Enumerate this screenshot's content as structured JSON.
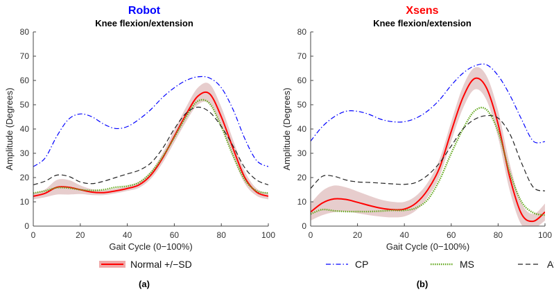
{
  "chart_data": [
    {
      "type": "line",
      "panel_label": "(a)",
      "title": "Robot",
      "title_color": "#0000ff",
      "subtitle": "Knee flexion/extension",
      "xlabel": "Gait Cycle (0−100%)",
      "ylabel": "Amplitude (Degrees)",
      "xlim": [
        0,
        100
      ],
      "ylim": [
        0,
        80
      ],
      "xticks": [
        "0",
        "20",
        "40",
        "60",
        "80",
        "100"
      ],
      "yticks": [
        "0",
        "10",
        "20",
        "30",
        "40",
        "50",
        "60",
        "70",
        "80"
      ],
      "x": [
        0,
        5,
        10,
        15,
        20,
        25,
        30,
        35,
        40,
        45,
        50,
        55,
        60,
        65,
        70,
        75,
        80,
        85,
        90,
        95,
        100
      ],
      "series": [
        {
          "name": "Normal +/−SD",
          "color": "#ff0000",
          "style": "solid",
          "values": [
            12.3,
            13.5,
            16,
            16,
            15,
            14,
            13.8,
            14.5,
            15.5,
            17,
            21,
            28,
            37,
            46,
            53.5,
            54.5,
            45,
            32,
            20,
            14,
            12.3
          ],
          "sd": [
            1.3,
            1.6,
            3,
            3,
            1.8,
            1.2,
            1,
            1,
            1,
            1.2,
            1.5,
            2,
            2.5,
            3,
            3.5,
            4,
            4,
            3.5,
            2.5,
            1.5,
            1.3
          ]
        },
        {
          "name": "CP",
          "color": "#0000ff",
          "style": "dashdot",
          "values": [
            24.5,
            28,
            37,
            44,
            46.2,
            45,
            42,
            40.2,
            41,
            44,
            48,
            53,
            57,
            60,
            61.5,
            61,
            57,
            48,
            36,
            27,
            24.5
          ]
        },
        {
          "name": "MS",
          "color": "#66aa22",
          "style": "dotted",
          "values": [
            13.6,
            14.5,
            15.8,
            15.7,
            15,
            14.7,
            15,
            16,
            16.5,
            18,
            22,
            28.5,
            36.5,
            45,
            51.5,
            50.5,
            41,
            29,
            19,
            14.5,
            13.6
          ]
        },
        {
          "name": "Ataxia",
          "color": "#222222",
          "style": "dashed",
          "values": [
            17,
            18.5,
            21,
            20.5,
            18.2,
            17.5,
            18.5,
            20,
            21.5,
            23,
            26,
            32,
            40,
            46.5,
            49,
            47,
            41,
            33,
            24,
            19,
            17
          ]
        }
      ]
    },
    {
      "type": "line",
      "panel_label": "(b)",
      "title": "Xsens",
      "title_color": "#ff0000",
      "subtitle": "Knee flexion/extension",
      "xlabel": "Gait Cycle (0−100%)",
      "ylabel": "Amplitude (Degrees)",
      "xlim": [
        0,
        100
      ],
      "ylim": [
        0,
        80
      ],
      "xticks": [
        "0",
        "20",
        "40",
        "60",
        "80",
        "100"
      ],
      "yticks": [
        "0",
        "10",
        "20",
        "30",
        "40",
        "50",
        "60",
        "70",
        "80"
      ],
      "x": [
        0,
        5,
        10,
        15,
        20,
        25,
        30,
        35,
        40,
        45,
        50,
        55,
        60,
        65,
        70,
        75,
        80,
        85,
        90,
        95,
        100
      ],
      "series": [
        {
          "name": "Normal +/−SD",
          "color": "#ff0000",
          "style": "solid",
          "values": [
            5.8,
            9.5,
            11.2,
            11,
            9.8,
            8.5,
            7.4,
            6.8,
            7,
            9.5,
            15,
            24,
            39,
            53,
            60.8,
            57,
            42,
            20,
            5,
            2,
            5.8
          ],
          "sd": [
            3.5,
            5,
            5.5,
            5,
            4.5,
            4,
            3.5,
            3.2,
            3,
            3,
            3,
            3.5,
            4,
            4.5,
            4.5,
            5,
            5.5,
            5.5,
            4.5,
            3,
            3.5
          ]
        },
        {
          "name": "CP",
          "color": "#0000ff",
          "style": "dashdot",
          "values": [
            35,
            41,
            45,
            47.3,
            47.3,
            46,
            44,
            43,
            43,
            44.5,
            47.5,
            52,
            58,
            63,
            66,
            66.5,
            62,
            54,
            44,
            35,
            34.8
          ]
        },
        {
          "name": "MS",
          "color": "#66aa22",
          "style": "dotted",
          "values": [
            5,
            6.8,
            6.3,
            6,
            6,
            6,
            6.2,
            6.5,
            6.5,
            7.5,
            11,
            19,
            30,
            40,
            47.5,
            48,
            39,
            22,
            10,
            5.5,
            4.5
          ]
        },
        {
          "name": "Ataxia",
          "color": "#222222",
          "style": "dashed",
          "values": [
            15.5,
            20.5,
            20.5,
            19,
            18.2,
            18,
            17.7,
            17.4,
            17.2,
            18,
            21,
            26,
            33,
            40,
            44,
            45.5,
            44.5,
            38,
            26,
            16,
            14.5
          ]
        }
      ]
    }
  ],
  "legend": {
    "placement": "bottom",
    "items": [
      {
        "label": "Normal +/−SD",
        "color": "#ff0000",
        "style": "solid"
      },
      {
        "label": "CP",
        "color": "#0000ff",
        "style": "dashdot"
      },
      {
        "label": "MS",
        "color": "#66aa22",
        "style": "dotted"
      },
      {
        "label": "Ataxia",
        "color": "#222222",
        "style": "dashed"
      }
    ]
  }
}
